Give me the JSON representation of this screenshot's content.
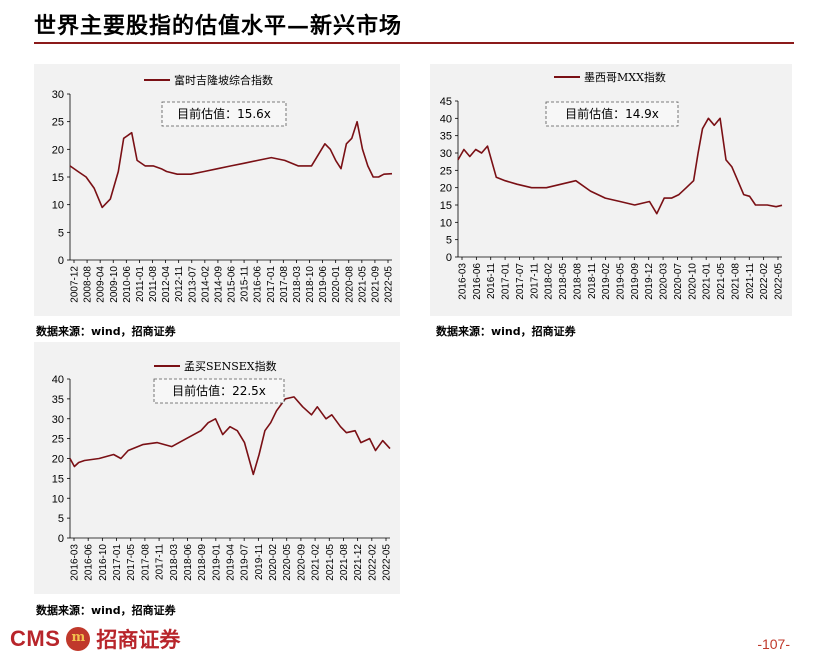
{
  "page": {
    "title": "世界主要股指的估值水平—新兴市场",
    "page_number": "-107-",
    "footer_brand_latin": "CMS",
    "footer_brand_cn": "招商证券",
    "accent_color": "#8b1a1a"
  },
  "chart_data": [
    {
      "id": "singapore",
      "type": "line",
      "legend": "富时吉隆坡综合指数",
      "annotation": "目前估值：15.6x",
      "source": "数据来源：wind，招商证券",
      "color": "#7a1015",
      "ylim": [
        0,
        30
      ],
      "yticks": [
        0,
        5,
        10,
        15,
        20,
        25,
        30
      ],
      "xtick_labels": [
        "2007-12",
        "2008-08",
        "2009-04",
        "2009-10",
        "2010-06",
        "2011-01",
        "2011-08",
        "2012-04",
        "2012-11",
        "2013-07",
        "2014-02",
        "2014-09",
        "2015-06",
        "2015-11",
        "2016-06",
        "2017-01",
        "2017-08",
        "2018-03",
        "2018-10",
        "2019-06",
        "2020-01",
        "2020-08",
        "2021-05",
        "2021-09",
        "2022-05"
      ],
      "x": [
        0,
        0.6,
        1.2,
        1.8,
        2.4,
        3,
        3.6,
        4,
        4.6,
        5,
        5.6,
        6.2,
        6.8,
        7.2,
        8,
        9,
        10,
        11,
        12,
        13,
        14,
        15,
        16,
        17,
        18,
        19,
        19.4,
        19.8,
        20.2,
        20.6,
        21,
        21.4,
        21.8,
        22.2,
        22.6,
        23,
        23.4,
        24
      ],
      "y": [
        17,
        16,
        15,
        13,
        9.5,
        11,
        16,
        22,
        23,
        18,
        17,
        17,
        16.5,
        16,
        15.5,
        15.5,
        16,
        16.5,
        17,
        17.5,
        18,
        18.5,
        18,
        17,
        17,
        21,
        20,
        18,
        16.5,
        21,
        22,
        25,
        20,
        17,
        15,
        15,
        15.5,
        15.6
      ]
    },
    {
      "id": "mexico",
      "type": "line",
      "legend": "墨西哥MXX指数",
      "annotation": "目前估值：14.9x",
      "source": "数据来源：wind，招商证券",
      "color": "#7a1015",
      "ylim": [
        0,
        45
      ],
      "yticks": [
        0,
        5,
        10,
        15,
        20,
        25,
        30,
        35,
        40,
        45
      ],
      "xtick_labels": [
        "2016-03",
        "2016-06",
        "2016-11",
        "2017-01",
        "2017-07",
        "2017-11",
        "2018-02",
        "2018-05",
        "2018-08",
        "2018-11",
        "2019-02",
        "2019-05",
        "2019-09",
        "2019-12",
        "2020-03",
        "2020-07",
        "2020-10",
        "2021-01",
        "2021-05",
        "2021-08",
        "2021-11",
        "2022-02",
        "2022-05"
      ],
      "x": [
        0,
        0.4,
        0.8,
        1.2,
        1.6,
        2,
        2.6,
        3.2,
        4,
        5,
        6,
        7,
        8,
        9,
        10,
        11,
        12,
        13,
        13.5,
        14,
        14.5,
        15,
        15.5,
        16,
        16.3,
        16.6,
        17,
        17.4,
        17.8,
        18.2,
        18.6,
        19,
        19.4,
        19.8,
        20.2,
        20.6,
        21,
        21.6,
        22
      ],
      "y": [
        28,
        31,
        29,
        31,
        30,
        32,
        23,
        22,
        21,
        20,
        20,
        21,
        22,
        19,
        17,
        16,
        15,
        16,
        12.5,
        17,
        17,
        18,
        20,
        22,
        30,
        37,
        40,
        38,
        40,
        28,
        26,
        22,
        18,
        17.5,
        15,
        15,
        15,
        14.5,
        14.9
      ]
    },
    {
      "id": "india",
      "type": "line",
      "legend": "孟买SENSEX指数",
      "annotation": "目前估值：22.5x",
      "source": "数据来源：wind，招商证券",
      "color": "#7a1015",
      "ylim": [
        0,
        40
      ],
      "yticks": [
        0,
        5,
        10,
        15,
        20,
        25,
        30,
        35,
        40
      ],
      "xtick_labels": [
        "2016-03",
        "2016-06",
        "2016-10",
        "2017-01",
        "2017-05",
        "2017-08",
        "2017-11",
        "2018-03",
        "2018-06",
        "2018-09",
        "2019-01",
        "2019-04",
        "2019-07",
        "2019-11",
        "2020-02",
        "2020-05",
        "2020-09",
        "2021-02",
        "2021-05",
        "2021-08",
        "2021-12",
        "2022-02",
        "2022-05"
      ],
      "x": [
        0,
        0.3,
        0.6,
        1,
        2,
        3,
        3.5,
        4,
        5,
        6,
        7,
        8,
        9,
        9.5,
        10,
        10.5,
        11,
        11.5,
        12,
        12.6,
        13,
        13.4,
        13.8,
        14.2,
        14.8,
        15.4,
        16,
        16.6,
        17,
        17.6,
        18,
        18.6,
        19,
        19.6,
        20,
        20.6,
        21,
        21.5,
        22
      ],
      "y": [
        20,
        18,
        19,
        19.5,
        20,
        21,
        20,
        22,
        23.5,
        24,
        23,
        25,
        27,
        29,
        30,
        26,
        28,
        27,
        24,
        16,
        21,
        27,
        29,
        32,
        35,
        35.5,
        33,
        31,
        33,
        30,
        31,
        28,
        26.5,
        27,
        24,
        25,
        22,
        24.5,
        22.5
      ]
    }
  ]
}
